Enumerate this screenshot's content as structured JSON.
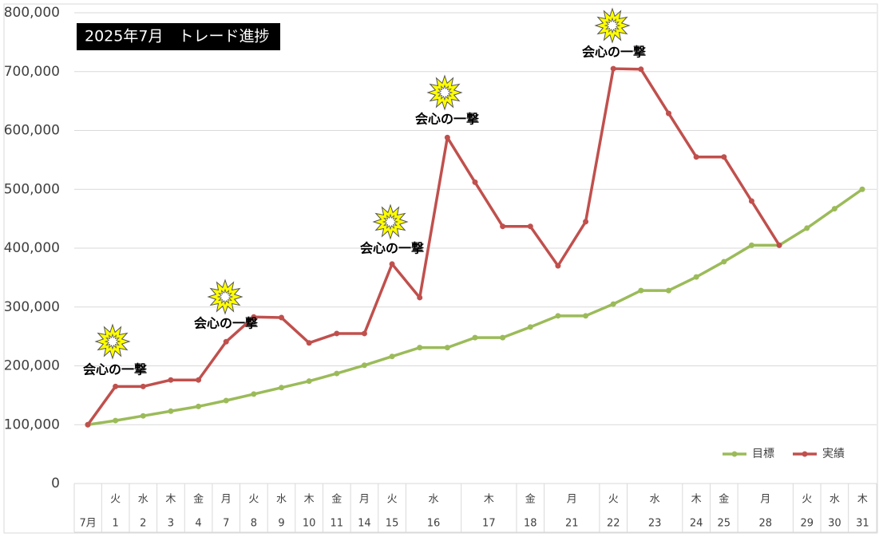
{
  "chart_data": {
    "type": "line",
    "title": "2025年7月　トレード進捗",
    "categories": [
      "7月",
      "1",
      "2",
      "3",
      "4",
      "7",
      "8",
      "9",
      "10",
      "11",
      "14",
      "15",
      "16",
      null,
      "17",
      null,
      "18",
      "21",
      null,
      "22",
      "23",
      null,
      "24",
      "25",
      "28",
      null,
      "29",
      "30",
      "31"
    ],
    "weekdays": [
      null,
      "火",
      "水",
      "木",
      "金",
      "月",
      "火",
      "水",
      "木",
      "金",
      "月",
      "火",
      "水",
      null,
      "木",
      null,
      "金",
      "月",
      null,
      "火",
      "水",
      null,
      "木",
      "金",
      "月",
      null,
      "火",
      "水",
      "木"
    ],
    "series": [
      {
        "name": "目標",
        "color": "#9bbb59",
        "values": [
          100000,
          107000,
          115000,
          123000,
          131000,
          141000,
          152000,
          163000,
          174000,
          187000,
          201000,
          216000,
          231000,
          231000,
          248000,
          248000,
          266000,
          285000,
          285000,
          305000,
          328000,
          328000,
          351000,
          377000,
          405000,
          405000,
          434000,
          467000,
          500000
        ]
      },
      {
        "name": "実績",
        "color": "#c0504d",
        "values": [
          100000,
          165000,
          165000,
          176000,
          176000,
          241000,
          283000,
          282000,
          239000,
          255000,
          255000,
          373000,
          316000,
          588000,
          512000,
          437000,
          437000,
          370000,
          445000,
          705000,
          704000,
          629000,
          555000,
          555000,
          480000,
          405000,
          null,
          null,
          null
        ]
      }
    ],
    "annotations": [
      "会心の一撃",
      "会心の一撃",
      "会心の一撃",
      "会心の一撃",
      "会心の一撃"
    ],
    "ylim": [
      0,
      800000
    ],
    "yticks": [
      0,
      {
        "value": 100000,
        "label": "100,000"
      },
      {
        "value": 200000,
        "label": "200,000"
      },
      {
        "value": 300000,
        "label": "300,000"
      },
      {
        "value": 400000,
        "label": "400,000"
      },
      {
        "value": 500000,
        "label": "500,000"
      },
      {
        "value": 600000,
        "label": "600,000"
      },
      {
        "value": 700000,
        "label": "700,000"
      },
      {
        "value": 800000,
        "label": "800,000"
      }
    ],
    "grid": true,
    "legend": "bottom-right"
  }
}
